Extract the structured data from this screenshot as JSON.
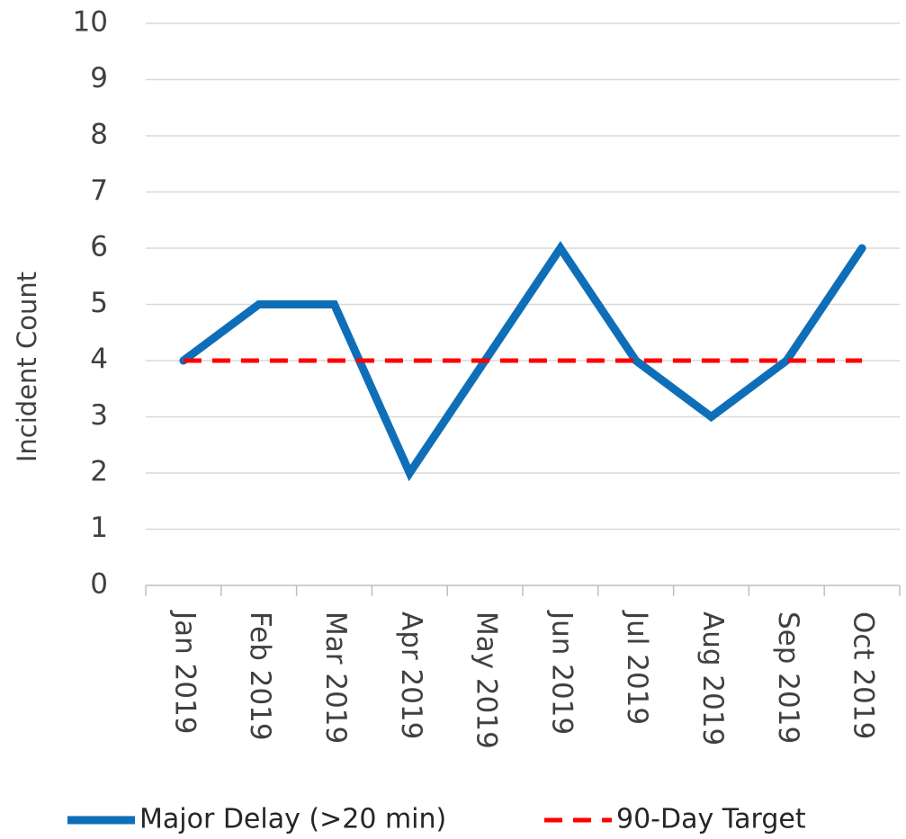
{
  "chart_data": {
    "type": "line",
    "ylabel": "Incident Count",
    "categories": [
      "Jan 2019",
      "Feb 2019",
      "Mar 2019",
      "Apr 2019",
      "May 2019",
      "Jun 2019",
      "Jul 2019",
      "Aug 2019",
      "Sep 2019",
      "Oct 2019"
    ],
    "series": [
      {
        "name": "Major Delay (>20 min)",
        "color": "#0e6fb8",
        "style": "solid",
        "values": [
          4,
          5,
          5,
          2,
          4,
          6,
          4,
          3,
          4,
          6
        ]
      },
      {
        "name": "90-Day Target",
        "color": "#ff0000",
        "style": "dashed",
        "values": [
          4,
          4,
          4,
          4,
          4,
          4,
          4,
          4,
          4,
          4
        ]
      }
    ],
    "ylim": [
      0,
      10
    ],
    "yticks": [
      0,
      1,
      2,
      3,
      4,
      5,
      6,
      7,
      8,
      9,
      10
    ],
    "grid": true,
    "legend": "bottom"
  }
}
